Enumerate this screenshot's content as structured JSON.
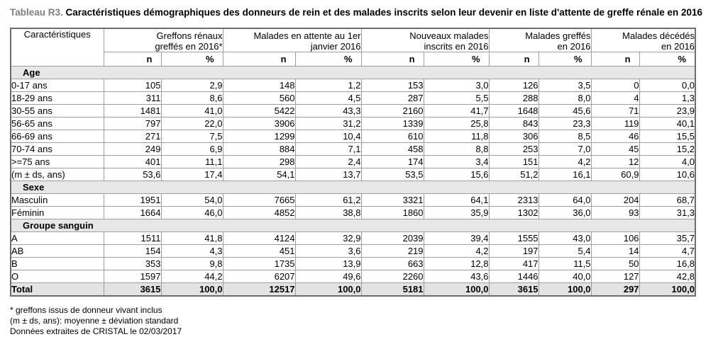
{
  "title": {
    "label": "Tableau R3.",
    "text": "Caractéristiques démographiques des donneurs de rein et des malades inscrits selon leur devenir en liste d'attente de greffe rénale en 2016"
  },
  "table": {
    "corner_header": "Caractéristiques",
    "group_headers": [
      {
        "line1": "Greffons rénaux",
        "line2": "greffés en 2016*"
      },
      {
        "line1": "Malades en attente au 1er",
        "line2": "janvier 2016"
      },
      {
        "line1": "Nouveaux malades",
        "line2": "inscrits en 2016"
      },
      {
        "line1": "Malades greffés",
        "line2": "en 2016"
      },
      {
        "line1": "Malades décédés",
        "line2": "en 2016"
      }
    ],
    "subheaders": [
      "n",
      "%"
    ],
    "sections": [
      {
        "label": "Age",
        "rows": [
          {
            "label": "0-17 ans",
            "values": [
              "105",
              "2,9",
              "148",
              "1,2",
              "153",
              "3,0",
              "126",
              "3,5",
              "0",
              "0,0"
            ]
          },
          {
            "label": "18-29 ans",
            "values": [
              "311",
              "8,6",
              "560",
              "4,5",
              "287",
              "5,5",
              "288",
              "8,0",
              "4",
              "1,3"
            ]
          },
          {
            "label": "30-55 ans",
            "values": [
              "1481",
              "41,0",
              "5422",
              "43,3",
              "2160",
              "41,7",
              "1648",
              "45,6",
              "71",
              "23,9"
            ]
          },
          {
            "label": "56-65 ans",
            "values": [
              "797",
              "22,0",
              "3906",
              "31,2",
              "1339",
              "25,8",
              "843",
              "23,3",
              "119",
              "40,1"
            ]
          },
          {
            "label": "66-69 ans",
            "values": [
              "271",
              "7,5",
              "1299",
              "10,4",
              "610",
              "11,8",
              "306",
              "8,5",
              "46",
              "15,5"
            ]
          },
          {
            "label": "70-74 ans",
            "values": [
              "249",
              "6,9",
              "884",
              "7,1",
              "458",
              "8,8",
              "253",
              "7,0",
              "45",
              "15,2"
            ]
          },
          {
            "label": ">=75 ans",
            "values": [
              "401",
              "11,1",
              "298",
              "2,4",
              "174",
              "3,4",
              "151",
              "4,2",
              "12",
              "4,0"
            ]
          },
          {
            "label": "(m ± ds, ans)",
            "values": [
              "53,6",
              "17,4",
              "54,1",
              "13,7",
              "53,5",
              "15,6",
              "51,2",
              "16,1",
              "60,9",
              "10,6"
            ]
          }
        ]
      },
      {
        "label": "Sexe",
        "rows": [
          {
            "label": "Masculin",
            "values": [
              "1951",
              "54,0",
              "7665",
              "61,2",
              "3321",
              "64,1",
              "2313",
              "64,0",
              "204",
              "68,7"
            ]
          },
          {
            "label": "Féminin",
            "values": [
              "1664",
              "46,0",
              "4852",
              "38,8",
              "1860",
              "35,9",
              "1302",
              "36,0",
              "93",
              "31,3"
            ]
          }
        ]
      },
      {
        "label": "Groupe sanguin",
        "rows": [
          {
            "label": "A",
            "values": [
              "1511",
              "41,8",
              "4124",
              "32,9",
              "2039",
              "39,4",
              "1555",
              "43,0",
              "106",
              "35,7"
            ]
          },
          {
            "label": "AB",
            "values": [
              "154",
              "4,3",
              "451",
              "3,6",
              "219",
              "4,2",
              "197",
              "5,4",
              "14",
              "4,7"
            ]
          },
          {
            "label": "B",
            "values": [
              "353",
              "9,8",
              "1735",
              "13,9",
              "663",
              "12,8",
              "417",
              "11,5",
              "50",
              "16,8"
            ]
          },
          {
            "label": "O",
            "values": [
              "1597",
              "44,2",
              "6207",
              "49,6",
              "2260",
              "43,6",
              "1446",
              "40,0",
              "127",
              "42,8"
            ]
          }
        ]
      }
    ],
    "total_row": {
      "label": "Total",
      "values": [
        "3615",
        "100,0",
        "12517",
        "100,0",
        "5181",
        "100,0",
        "3615",
        "100,0",
        "297",
        "100,0"
      ]
    }
  },
  "footnotes": [
    "* greffons issus de donneur vivant inclus",
    "(m ± ds, ans): moyenne ± déviation standard",
    "Données extraites de CRISTAL le 02/03/2017"
  ],
  "colors": {
    "section_bg": "#e7e7e7",
    "total_bg": "#e3e3e3",
    "border": "#9e9e9e",
    "outer_border": "#6e6e6e",
    "title_label": "#808080"
  }
}
